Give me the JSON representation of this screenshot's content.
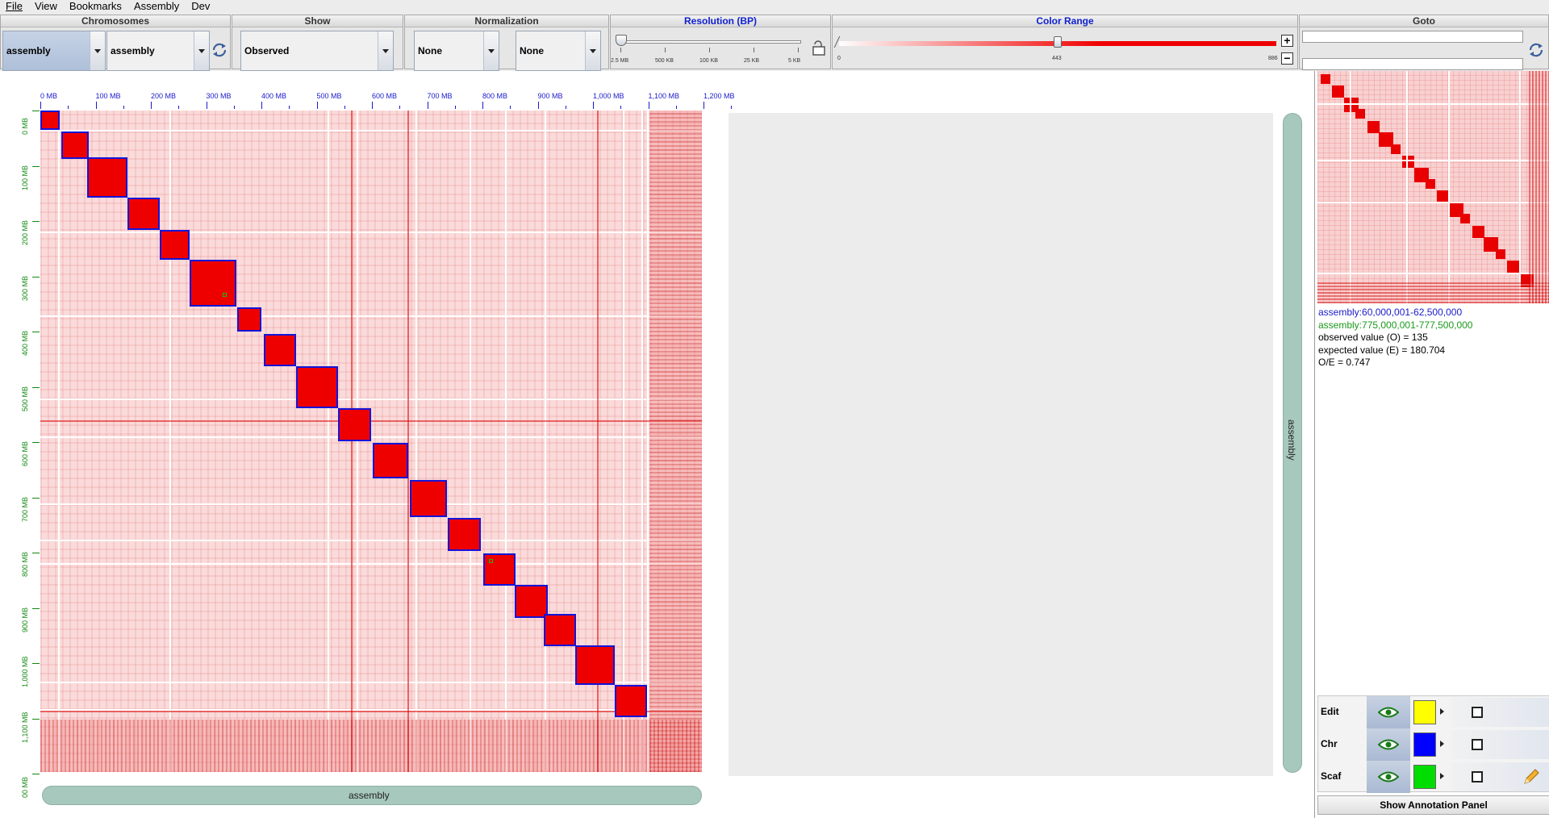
{
  "menu": {
    "file": "File",
    "view": "View",
    "bookmarks": "Bookmarks",
    "assembly": "Assembly",
    "dev": "Dev"
  },
  "controls": {
    "chromosomes": {
      "title": "Chromosomes",
      "x_selected": "assembly",
      "y_selected": "assembly"
    },
    "show": {
      "title": "Show",
      "selected": "Observed"
    },
    "normalization": {
      "title": "Normalization",
      "first_selected": "None",
      "second_selected": "None"
    },
    "resolution": {
      "title": "Resolution (BP)",
      "ticks": [
        "2.5 MB",
        "500 KB",
        "100 KB",
        "25 KB",
        "5 KB"
      ],
      "slider_position": 0
    },
    "color_range": {
      "title": "Color Range",
      "min_label": "0",
      "mid_label": "443",
      "max_label": "886",
      "current": 443,
      "max": 886
    },
    "goto": {
      "title": "Goto",
      "x_value": "",
      "y_value": ""
    }
  },
  "heatmap": {
    "x_ticks": [
      "0 MB",
      "100 MB",
      "200 MB",
      "300 MB",
      "400 MB",
      "500 MB",
      "600 MB",
      "700 MB",
      "800 MB",
      "900 MB",
      "1,000 MB",
      "1,100 MB",
      "1,200 MB"
    ],
    "y_ticks": [
      "0 MB",
      "100 MB",
      "200 MB",
      "300 MB",
      "400 MB",
      "500 MB",
      "600 MB",
      "700 MB",
      "800 MB",
      "900 MB",
      "1,000 MB",
      "1,100 MB",
      "00 MB"
    ],
    "x_axis_label": "assembly",
    "y_axis_label": "assembly"
  },
  "hover_info": {
    "x_region": "assembly:60,000,001-62,500,000",
    "y_region": "assembly:775,000,001-777,500,000",
    "observed": "observed value (O) = 135",
    "expected": "expected value (E) = 180.704",
    "oe": "O/E = 0.747"
  },
  "layers": [
    {
      "name": "Edit",
      "color": "#ffff00"
    },
    {
      "name": "Chr",
      "color": "#0000ff"
    },
    {
      "name": "Scaf",
      "color": "#00dd00"
    }
  ],
  "annotation_button": "Show Annotation Panel",
  "colors": {
    "heat": "#ef0000",
    "scaffold_border": "#1414d8",
    "rail": "#a7c8bc"
  }
}
